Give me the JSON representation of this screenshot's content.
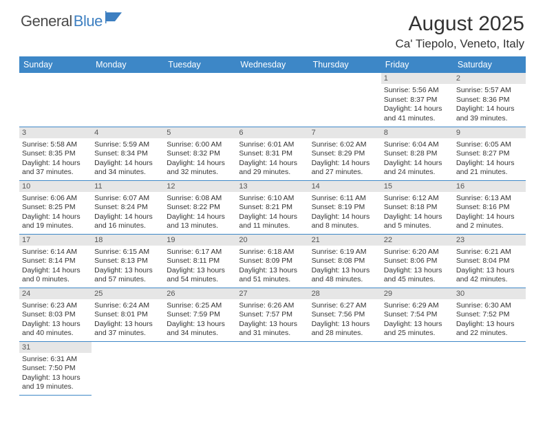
{
  "logo": {
    "part1": "General",
    "part2": "Blue"
  },
  "title": "August 2025",
  "location": "Ca' Tiepolo, Veneto, Italy",
  "colors": {
    "header_bg": "#3d87c7",
    "header_text": "#ffffff",
    "daynum_bg": "#e6e6e6",
    "border": "#3d87c7",
    "logo_gray": "#4a4a4a",
    "logo_blue": "#3d7fc1"
  },
  "dayNames": [
    "Sunday",
    "Monday",
    "Tuesday",
    "Wednesday",
    "Thursday",
    "Friday",
    "Saturday"
  ],
  "weeks": [
    [
      null,
      null,
      null,
      null,
      null,
      {
        "n": "1",
        "sr": "5:56 AM",
        "ss": "8:37 PM",
        "dl": "14 hours and 41 minutes."
      },
      {
        "n": "2",
        "sr": "5:57 AM",
        "ss": "8:36 PM",
        "dl": "14 hours and 39 minutes."
      }
    ],
    [
      {
        "n": "3",
        "sr": "5:58 AM",
        "ss": "8:35 PM",
        "dl": "14 hours and 37 minutes."
      },
      {
        "n": "4",
        "sr": "5:59 AM",
        "ss": "8:34 PM",
        "dl": "14 hours and 34 minutes."
      },
      {
        "n": "5",
        "sr": "6:00 AM",
        "ss": "8:32 PM",
        "dl": "14 hours and 32 minutes."
      },
      {
        "n": "6",
        "sr": "6:01 AM",
        "ss": "8:31 PM",
        "dl": "14 hours and 29 minutes."
      },
      {
        "n": "7",
        "sr": "6:02 AM",
        "ss": "8:29 PM",
        "dl": "14 hours and 27 minutes."
      },
      {
        "n": "8",
        "sr": "6:04 AM",
        "ss": "8:28 PM",
        "dl": "14 hours and 24 minutes."
      },
      {
        "n": "9",
        "sr": "6:05 AM",
        "ss": "8:27 PM",
        "dl": "14 hours and 21 minutes."
      }
    ],
    [
      {
        "n": "10",
        "sr": "6:06 AM",
        "ss": "8:25 PM",
        "dl": "14 hours and 19 minutes."
      },
      {
        "n": "11",
        "sr": "6:07 AM",
        "ss": "8:24 PM",
        "dl": "14 hours and 16 minutes."
      },
      {
        "n": "12",
        "sr": "6:08 AM",
        "ss": "8:22 PM",
        "dl": "14 hours and 13 minutes."
      },
      {
        "n": "13",
        "sr": "6:10 AM",
        "ss": "8:21 PM",
        "dl": "14 hours and 11 minutes."
      },
      {
        "n": "14",
        "sr": "6:11 AM",
        "ss": "8:19 PM",
        "dl": "14 hours and 8 minutes."
      },
      {
        "n": "15",
        "sr": "6:12 AM",
        "ss": "8:18 PM",
        "dl": "14 hours and 5 minutes."
      },
      {
        "n": "16",
        "sr": "6:13 AM",
        "ss": "8:16 PM",
        "dl": "14 hours and 2 minutes."
      }
    ],
    [
      {
        "n": "17",
        "sr": "6:14 AM",
        "ss": "8:14 PM",
        "dl": "14 hours and 0 minutes."
      },
      {
        "n": "18",
        "sr": "6:15 AM",
        "ss": "8:13 PM",
        "dl": "13 hours and 57 minutes."
      },
      {
        "n": "19",
        "sr": "6:17 AM",
        "ss": "8:11 PM",
        "dl": "13 hours and 54 minutes."
      },
      {
        "n": "20",
        "sr": "6:18 AM",
        "ss": "8:09 PM",
        "dl": "13 hours and 51 minutes."
      },
      {
        "n": "21",
        "sr": "6:19 AM",
        "ss": "8:08 PM",
        "dl": "13 hours and 48 minutes."
      },
      {
        "n": "22",
        "sr": "6:20 AM",
        "ss": "8:06 PM",
        "dl": "13 hours and 45 minutes."
      },
      {
        "n": "23",
        "sr": "6:21 AM",
        "ss": "8:04 PM",
        "dl": "13 hours and 42 minutes."
      }
    ],
    [
      {
        "n": "24",
        "sr": "6:23 AM",
        "ss": "8:03 PM",
        "dl": "13 hours and 40 minutes."
      },
      {
        "n": "25",
        "sr": "6:24 AM",
        "ss": "8:01 PM",
        "dl": "13 hours and 37 minutes."
      },
      {
        "n": "26",
        "sr": "6:25 AM",
        "ss": "7:59 PM",
        "dl": "13 hours and 34 minutes."
      },
      {
        "n": "27",
        "sr": "6:26 AM",
        "ss": "7:57 PM",
        "dl": "13 hours and 31 minutes."
      },
      {
        "n": "28",
        "sr": "6:27 AM",
        "ss": "7:56 PM",
        "dl": "13 hours and 28 minutes."
      },
      {
        "n": "29",
        "sr": "6:29 AM",
        "ss": "7:54 PM",
        "dl": "13 hours and 25 minutes."
      },
      {
        "n": "30",
        "sr": "6:30 AM",
        "ss": "7:52 PM",
        "dl": "13 hours and 22 minutes."
      }
    ],
    [
      {
        "n": "31",
        "sr": "6:31 AM",
        "ss": "7:50 PM",
        "dl": "13 hours and 19 minutes."
      },
      null,
      null,
      null,
      null,
      null,
      null
    ]
  ],
  "labels": {
    "sunrise": "Sunrise:",
    "sunset": "Sunset:",
    "daylight": "Daylight:"
  }
}
